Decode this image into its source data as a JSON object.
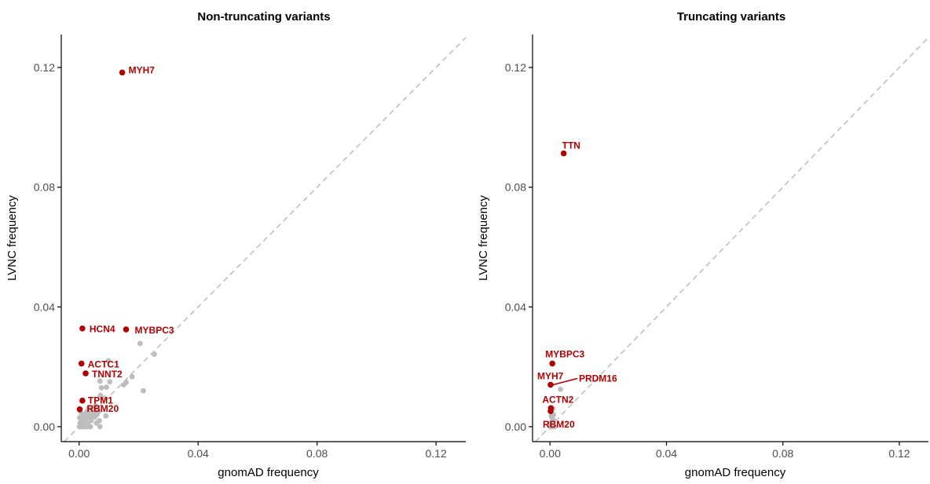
{
  "colors": {
    "highlight": "#b20000",
    "background_points": "#bdbdbd",
    "diagonal": "#bfbfbf",
    "axis": "#000000",
    "tick_label": "#4d4d4d"
  },
  "chart_data": [
    {
      "type": "scatter",
      "title": "Non-truncating variants",
      "xlabel": "gnomAD frequency",
      "ylabel": "LVNC frequency",
      "xlim": [
        -0.006,
        0.13
      ],
      "ylim": [
        -0.005,
        0.131
      ],
      "xticks": [
        0.0,
        0.04,
        0.08,
        0.12
      ],
      "yticks": [
        0.0,
        0.04,
        0.08,
        0.12
      ],
      "xtick_labels": [
        "0.00",
        "0.04",
        "0.08",
        "0.12"
      ],
      "ytick_labels": [
        "0.00",
        "0.04",
        "0.08",
        "0.12"
      ],
      "reference_line": "y = x (dashed)",
      "grid": false,
      "highlighted": [
        {
          "label": "MYH7",
          "x": 0.0145,
          "y": 0.1183,
          "label_side": "right"
        },
        {
          "label": "HCN4",
          "x": 0.0011,
          "y": 0.0328,
          "label_side": "right"
        },
        {
          "label": "MYBPC3",
          "x": 0.0158,
          "y": 0.0325,
          "label_side": "right"
        },
        {
          "label": "ACTC1",
          "x": 0.0008,
          "y": 0.0211,
          "label_side": "right"
        },
        {
          "label": "TNNT2",
          "x": 0.0022,
          "y": 0.0178,
          "label_side": "right"
        },
        {
          "label": "TPM1",
          "x": 0.0011,
          "y": 0.0087,
          "label_side": "right"
        },
        {
          "label": "RBM20",
          "x": 0.0002,
          "y": 0.0058,
          "label_side": "right"
        }
      ],
      "background": [
        [
          0.0205,
          0.0278
        ],
        [
          0.0253,
          0.0242
        ],
        [
          0.0216,
          0.012
        ],
        [
          0.0178,
          0.0167
        ],
        [
          0.0158,
          0.0148
        ],
        [
          0.015,
          0.014
        ],
        [
          0.0098,
          0.022
        ],
        [
          0.0103,
          0.015
        ],
        [
          0.0092,
          0.0132
        ],
        [
          0.007,
          0.0152
        ],
        [
          0.0075,
          0.013
        ],
        [
          0.0072,
          0.0105
        ],
        [
          0.0083,
          0.0095
        ],
        [
          0.009,
          0.0036
        ],
        [
          0.0065,
          0.005
        ],
        [
          0.006,
          0.004
        ],
        [
          0.0068,
          0.002
        ],
        [
          0.007,
          0.0
        ],
        [
          0.0055,
          0.007
        ],
        [
          0.005,
          0.005
        ],
        [
          0.0045,
          0.0055
        ],
        [
          0.0042,
          0.0035
        ],
        [
          0.004,
          0.002
        ],
        [
          0.0038,
          0.0
        ],
        [
          0.0035,
          0.0045
        ],
        [
          0.0032,
          0.0062
        ],
        [
          0.003,
          0.003
        ],
        [
          0.0028,
          0.001
        ],
        [
          0.0026,
          0.005
        ],
        [
          0.0025,
          0.0
        ],
        [
          0.0022,
          0.0025
        ],
        [
          0.002,
          0.004
        ],
        [
          0.0018,
          0.0
        ],
        [
          0.0015,
          0.003
        ],
        [
          0.0012,
          0.0015
        ],
        [
          0.001,
          0.0
        ],
        [
          0.0008,
          0.0045
        ],
        [
          0.0006,
          0.0025
        ],
        [
          0.0005,
          0.0
        ],
        [
          0.0003,
          0.0012
        ],
        [
          0.0002,
          0.003
        ],
        [
          0.0001,
          0.0
        ],
        [
          0.0047,
          0.006
        ],
        [
          0.0052,
          0.0032
        ],
        [
          0.0058,
          0.0012
        ],
        [
          0.0062,
          0.0056
        ]
      ]
    },
    {
      "type": "scatter",
      "title": "Truncating variants",
      "xlabel": "gnomAD frequency",
      "ylabel": "LVNC frequency",
      "xlim": [
        -0.006,
        0.13
      ],
      "ylim": [
        -0.005,
        0.131
      ],
      "xticks": [
        0.0,
        0.04,
        0.08,
        0.12
      ],
      "yticks": [
        0.0,
        0.04,
        0.08,
        0.12
      ],
      "xtick_labels": [
        "0.00",
        "0.04",
        "0.08",
        "0.12"
      ],
      "ytick_labels": [
        "0.00",
        "0.04",
        "0.08",
        "0.12"
      ],
      "reference_line": "y = x (dashed)",
      "grid": false,
      "highlighted": [
        {
          "label": "TTN",
          "x": 0.0047,
          "y": 0.0913,
          "label_side": "above"
        },
        {
          "label": "MYBPC3",
          "x": 0.0008,
          "y": 0.0211,
          "label_side": "above"
        },
        {
          "label": "MYH7",
          "x": 0.0002,
          "y": 0.014,
          "label_side": "above-left"
        },
        {
          "label": "PRDM16",
          "x": 0.0002,
          "y": 0.014,
          "label_side": "right-leader"
        },
        {
          "label": "ACTN2",
          "x": 0.0003,
          "y": 0.0062,
          "label_side": "above"
        },
        {
          "label": "RBM20",
          "x": 0.0002,
          "y": 0.0052,
          "label_side": "below"
        }
      ],
      "background": [
        [
          0.0036,
          0.0125
        ],
        [
          0.001,
          0.006
        ],
        [
          0.0012,
          0.004
        ],
        [
          0.0008,
          0.003
        ],
        [
          0.0006,
          0.0015
        ],
        [
          0.0005,
          0.0
        ],
        [
          0.001,
          0.0
        ],
        [
          0.0015,
          0.0
        ],
        [
          0.0003,
          0.001
        ],
        [
          0.0001,
          0.0
        ],
        [
          0.0012,
          0.002
        ],
        [
          0.0004,
          0.0035
        ]
      ]
    }
  ]
}
